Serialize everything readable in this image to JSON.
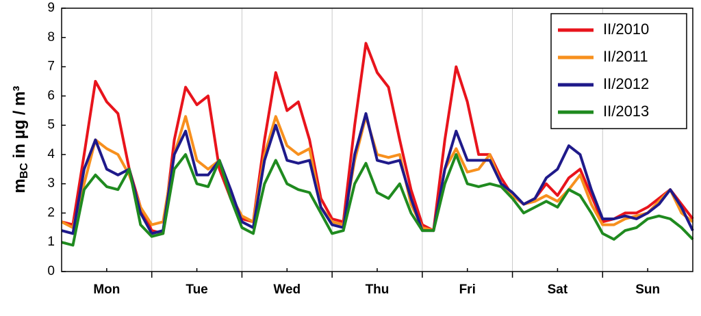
{
  "chart_data": {
    "type": "line",
    "ylabel": {
      "main": "m",
      "sub": "BC",
      "rest": " in µg / m³"
    },
    "x": [
      0,
      0.125,
      0.25,
      0.375,
      0.5,
      0.625,
      0.75,
      0.875,
      1,
      1.125,
      1.25,
      1.375,
      1.5,
      1.625,
      1.75,
      1.875,
      2,
      2.125,
      2.25,
      2.375,
      2.5,
      2.625,
      2.75,
      2.875,
      3,
      3.125,
      3.25,
      3.375,
      3.5,
      3.625,
      3.75,
      3.875,
      4,
      4.125,
      4.25,
      4.375,
      4.5,
      4.625,
      4.75,
      4.875,
      5,
      5.125,
      5.25,
      5.375,
      5.5,
      5.625,
      5.75,
      5.875,
      6,
      6.125,
      6.25,
      6.375,
      6.5,
      6.625,
      6.75,
      6.875,
      7
    ],
    "xlim": [
      0,
      7
    ],
    "xticks": [
      {
        "value": 0.5,
        "label": "Mon"
      },
      {
        "value": 1.5,
        "label": "Tue"
      },
      {
        "value": 2.5,
        "label": "Wed"
      },
      {
        "value": 3.5,
        "label": "Thu"
      },
      {
        "value": 4.5,
        "label": "Fri"
      },
      {
        "value": 5.5,
        "label": "Sat"
      },
      {
        "value": 6.5,
        "label": "Sun"
      }
    ],
    "ylim": [
      0,
      9
    ],
    "yticks": [
      0,
      1,
      2,
      3,
      4,
      5,
      6,
      7,
      8,
      9
    ],
    "legend": "top-right",
    "series": [
      {
        "name": "II/2010",
        "color": "#e8141c",
        "values": [
          1.7,
          1.6,
          4.0,
          6.5,
          5.8,
          5.4,
          3.5,
          2.2,
          1.4,
          1.3,
          4.5,
          6.3,
          5.7,
          6.0,
          3.5,
          2.5,
          1.8,
          1.7,
          4.5,
          6.8,
          5.5,
          5.8,
          4.5,
          2.5,
          1.8,
          1.7,
          5.0,
          7.8,
          6.8,
          6.3,
          4.5,
          2.8,
          1.6,
          1.4,
          4.5,
          7.0,
          5.8,
          4.0,
          4.0,
          3.2,
          2.6,
          2.3,
          2.5,
          3.0,
          2.6,
          3.2,
          3.5,
          2.6,
          1.7,
          1.8,
          2.0,
          2.0,
          2.2,
          2.5,
          2.8,
          2.3,
          1.8
        ]
      },
      {
        "name": "II/2011",
        "color": "#f7901e",
        "values": [
          1.7,
          1.5,
          3.0,
          4.5,
          4.2,
          4.0,
          3.3,
          2.2,
          1.6,
          1.7,
          4.0,
          5.3,
          3.8,
          3.5,
          3.8,
          2.6,
          1.9,
          1.7,
          4.0,
          5.3,
          4.3,
          4.0,
          4.2,
          2.2,
          1.7,
          1.6,
          3.8,
          5.3,
          4.0,
          3.9,
          4.0,
          2.3,
          1.5,
          1.4,
          3.5,
          4.2,
          3.4,
          3.5,
          4.0,
          3.0,
          2.6,
          2.3,
          2.4,
          2.6,
          2.4,
          2.8,
          3.3,
          2.3,
          1.6,
          1.6,
          1.8,
          1.9,
          2.0,
          2.4,
          2.8,
          2.0,
          1.7
        ]
      },
      {
        "name": "II/2012",
        "color": "#1f1a8a",
        "values": [
          1.4,
          1.3,
          3.5,
          4.5,
          3.5,
          3.3,
          3.5,
          2.0,
          1.3,
          1.4,
          4.0,
          4.8,
          3.3,
          3.3,
          3.8,
          2.8,
          1.7,
          1.5,
          3.8,
          5.0,
          3.8,
          3.7,
          3.8,
          2.2,
          1.6,
          1.5,
          4.0,
          5.4,
          3.8,
          3.7,
          3.8,
          2.5,
          1.4,
          1.4,
          3.5,
          4.8,
          3.8,
          3.8,
          3.8,
          3.0,
          2.7,
          2.3,
          2.5,
          3.2,
          3.5,
          4.3,
          4.0,
          2.8,
          1.8,
          1.8,
          1.9,
          1.8,
          2.0,
          2.3,
          2.8,
          2.2,
          1.4
        ]
      },
      {
        "name": "II/2013",
        "color": "#1f8a1f",
        "values": [
          1.0,
          0.9,
          2.8,
          3.3,
          2.9,
          2.8,
          3.5,
          1.6,
          1.2,
          1.3,
          3.5,
          4.0,
          3.0,
          2.9,
          3.8,
          2.5,
          1.5,
          1.3,
          3.0,
          3.8,
          3.0,
          2.8,
          2.7,
          2.0,
          1.3,
          1.4,
          3.0,
          3.7,
          2.7,
          2.5,
          3.0,
          2.0,
          1.4,
          1.4,
          3.0,
          4.0,
          3.0,
          2.9,
          3.0,
          2.9,
          2.5,
          2.0,
          2.2,
          2.4,
          2.2,
          2.8,
          2.6,
          2.0,
          1.3,
          1.1,
          1.4,
          1.5,
          1.8,
          1.9,
          1.8,
          1.5,
          1.1
        ]
      }
    ]
  }
}
